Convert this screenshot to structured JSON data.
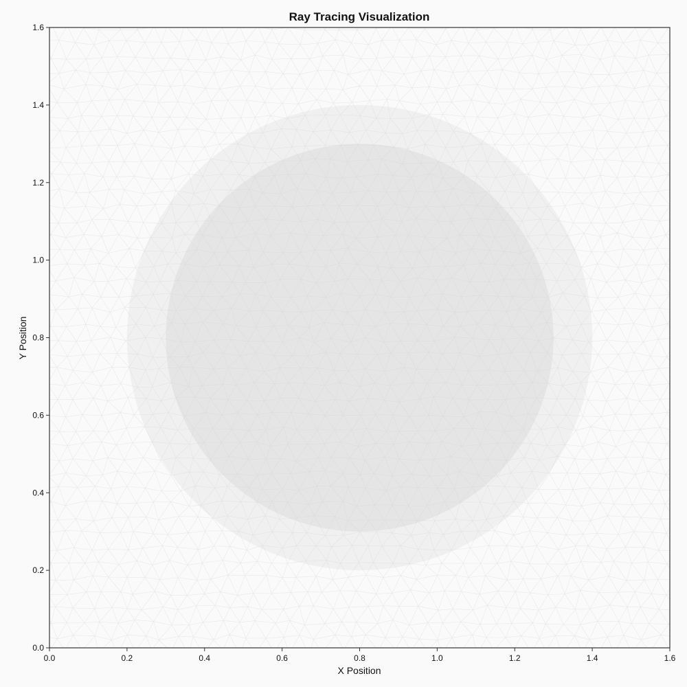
{
  "chart_data": {
    "type": "scatter",
    "title": "Ray Tracing Visualization",
    "xlabel": "X Position",
    "ylabel": "Y Position",
    "xlim": [
      0.0,
      1.6
    ],
    "ylim": [
      0.0,
      1.6
    ],
    "x_ticks": [
      "0.0",
      "0.2",
      "0.4",
      "0.6",
      "0.8",
      "1.0",
      "1.2",
      "1.4",
      "1.6"
    ],
    "y_ticks": [
      "0.0",
      "0.2",
      "0.4",
      "0.6",
      "0.8",
      "1.0",
      "1.2",
      "1.4",
      "1.6"
    ],
    "grid": false,
    "background_mesh": "triangular",
    "shapes": [
      {
        "kind": "circle",
        "cx": 0.8,
        "cy": 0.8,
        "r": 0.6,
        "color": "#f0f0f0"
      },
      {
        "kind": "circle",
        "cx": 0.8,
        "cy": 0.8,
        "r": 0.5,
        "color": "#e5e5e5"
      }
    ],
    "colors": {
      "background": "#fafafa",
      "mesh_line": "#d2d2d2",
      "axis": "#333333"
    }
  }
}
